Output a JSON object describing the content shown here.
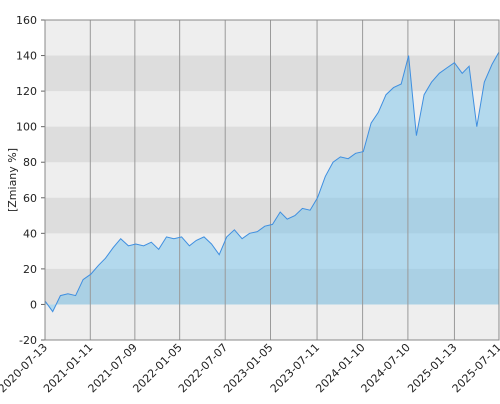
{
  "chart_data": {
    "type": "area",
    "ylabel": "[Zmiany %]",
    "color": "#3f8fe0",
    "x": [
      "2020-07-13",
      "2020-08-13",
      "2020-09-13",
      "2020-10-13",
      "2020-11-13",
      "2020-12-13",
      "2021-01-13",
      "2021-02-13",
      "2021-03-13",
      "2021-04-13",
      "2021-05-13",
      "2021-06-13",
      "2021-07-13",
      "2021-08-13",
      "2021-09-13",
      "2021-10-13",
      "2021-11-13",
      "2021-12-13",
      "2022-01-13",
      "2022-02-13",
      "2022-03-13",
      "2022-04-13",
      "2022-05-13",
      "2022-06-13",
      "2022-07-13",
      "2022-08-13",
      "2022-09-13",
      "2022-10-13",
      "2022-11-13",
      "2022-12-13",
      "2023-01-13",
      "2023-02-13",
      "2023-03-13",
      "2023-04-13",
      "2023-05-13",
      "2023-06-13",
      "2023-07-13",
      "2023-08-13",
      "2023-09-13",
      "2023-10-13",
      "2023-11-13",
      "2023-12-13",
      "2024-01-13",
      "2024-02-13",
      "2024-03-13",
      "2024-04-13",
      "2024-05-13",
      "2024-06-13",
      "2024-07-13",
      "2024-08-13",
      "2024-09-13",
      "2024-10-13",
      "2024-11-13",
      "2024-12-13",
      "2025-01-13",
      "2025-02-13",
      "2025-03-13",
      "2025-04-13",
      "2025-05-13",
      "2025-06-13",
      "2025-07-11"
    ],
    "values": [
      2,
      -4,
      5,
      6,
      5,
      14,
      17,
      22,
      26,
      32,
      37,
      33,
      34,
      33,
      35,
      31,
      38,
      37,
      38,
      33,
      36,
      38,
      34,
      28,
      38,
      42,
      37,
      40,
      41,
      44,
      45,
      52,
      48,
      50,
      54,
      53,
      60,
      72,
      80,
      83,
      82,
      85,
      86,
      102,
      108,
      118,
      122,
      124,
      140,
      95,
      118,
      125,
      130,
      133,
      136,
      130,
      134,
      100,
      125,
      135,
      142
    ],
    "xlim": [
      "2020-07-13",
      "2025-07-11"
    ],
    "xticks": [
      "2020-07-13",
      "2021-01-11",
      "2021-07-09",
      "2022-01-05",
      "2022-07-07",
      "2023-01-05",
      "2023-07-11",
      "2024-01-10",
      "2024-07-10",
      "2025-01-13",
      "2025-07-11"
    ],
    "ylim": [
      -20,
      160
    ],
    "yticks": [
      -20,
      0,
      20,
      40,
      60,
      80,
      100,
      120,
      140,
      160
    ],
    "grid": true
  }
}
